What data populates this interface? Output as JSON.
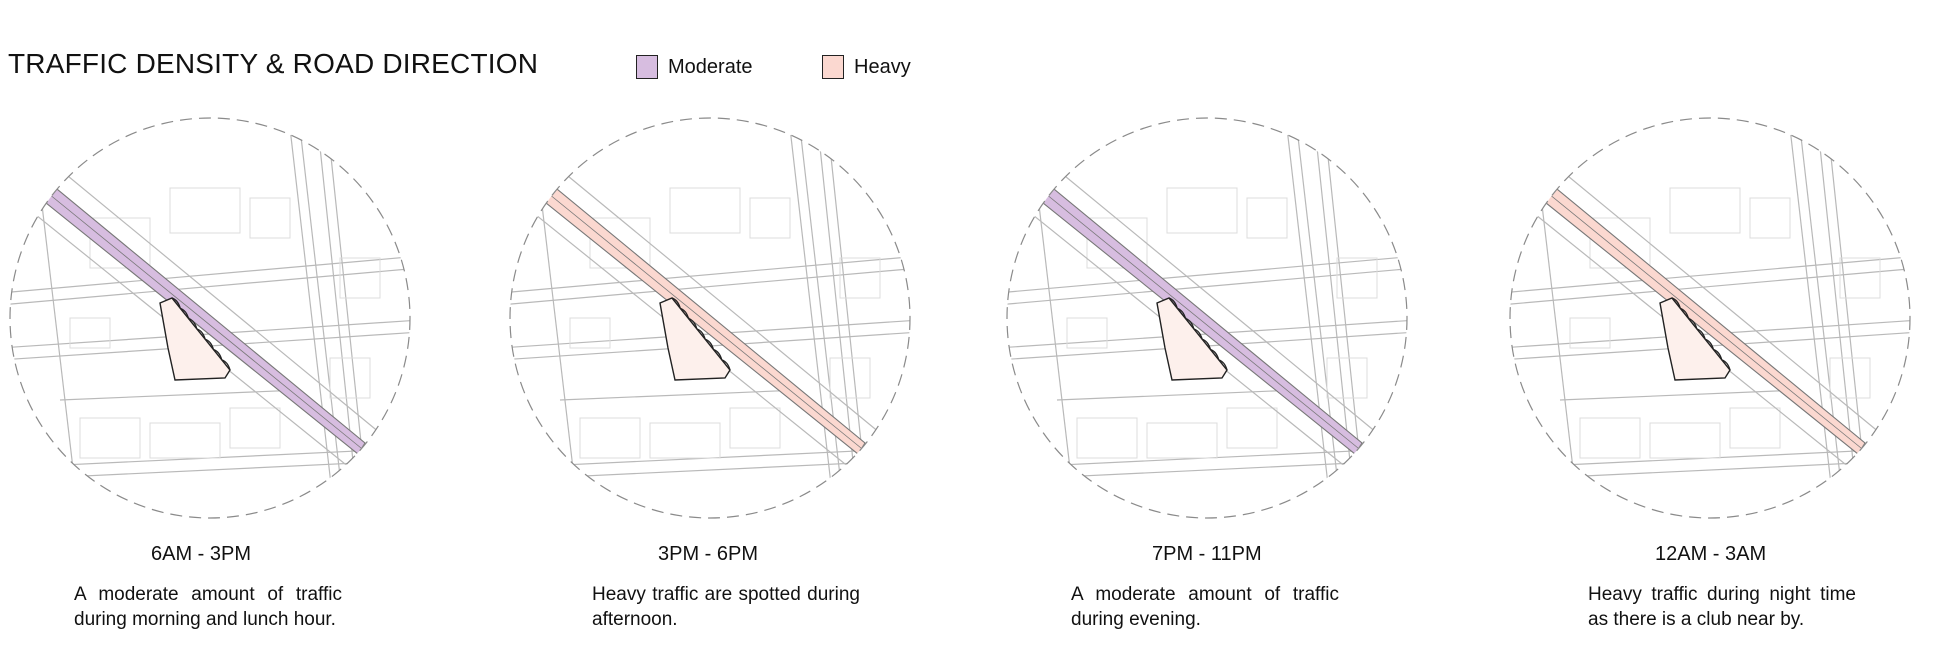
{
  "title": "TRAFFIC DENSITY & ROAD DIRECTION",
  "legend": [
    {
      "label": "Moderate",
      "color": "#d7bde0"
    },
    {
      "label": "Heavy",
      "color": "#fbd8d0"
    }
  ],
  "colors": {
    "road_outline": "#b9b9b9",
    "site_fill": "#fdf0ec",
    "circle_border": "#8a8a8a"
  },
  "panels": [
    {
      "time": "6AM - 3PM",
      "density": "moderate",
      "description": "A moderate amount of traffic during morning and lunch hour."
    },
    {
      "time": "3PM - 6PM",
      "density": "heavy",
      "description": "Heavy traffic are spotted during afternoon."
    },
    {
      "time": "7PM - 11PM",
      "density": "moderate",
      "description": "A moderate amount of traffic during evening."
    },
    {
      "time": "12AM - 3AM",
      "density": "heavy",
      "description": "Heavy traffic during night time as there is a club near by."
    }
  ]
}
